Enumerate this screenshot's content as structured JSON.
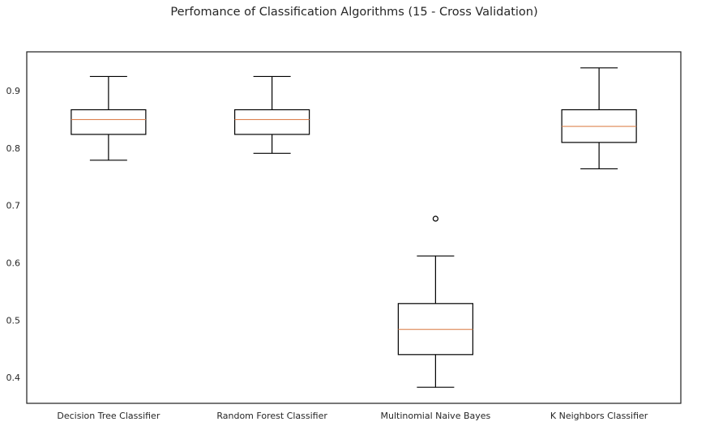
{
  "chart_data": {
    "type": "box",
    "title": "Perfomance of Classification Algorithms (15 - Cross Validation)",
    "xlabel": "",
    "ylabel": "",
    "ylim": [
      0.355,
      0.968
    ],
    "yticks": [
      0.4,
      0.5,
      0.6,
      0.7,
      0.8,
      0.9
    ],
    "ytick_labels": [
      "0.4",
      "0.5",
      "0.6",
      "0.7",
      "0.8",
      "0.9"
    ],
    "grid": false,
    "categories": [
      "Decision Tree Classifier",
      "Random Forest Classifier",
      "Multinomial Naive Bayes",
      "K Neighbors Classifier"
    ],
    "boxes": [
      {
        "whisker_low": 0.779,
        "q1": 0.824,
        "median": 0.85,
        "q3": 0.867,
        "whisker_high": 0.925,
        "outliers": []
      },
      {
        "whisker_low": 0.791,
        "q1": 0.824,
        "median": 0.85,
        "q3": 0.867,
        "whisker_high": 0.925,
        "outliers": []
      },
      {
        "whisker_low": 0.383,
        "q1": 0.44,
        "median": 0.484,
        "q3": 0.529,
        "whisker_high": 0.612,
        "outliers": [
          0.677
        ]
      },
      {
        "whisker_low": 0.764,
        "q1": 0.81,
        "median": 0.838,
        "q3": 0.867,
        "whisker_high": 0.94,
        "outliers": []
      }
    ],
    "colors": {
      "box": "#000000",
      "median": "#dd8452",
      "axes": "#262626",
      "text": "#262626"
    }
  }
}
